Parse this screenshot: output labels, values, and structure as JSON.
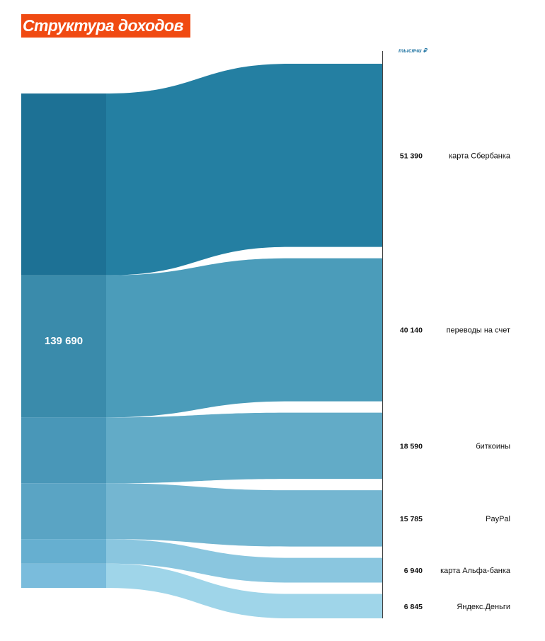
{
  "title": "Структура доходов",
  "colors": {
    "title_bg": "#f04a12",
    "title_text": "#ffffff",
    "unit_text": "#2a7aa6",
    "axis": "#444444",
    "label_text": "#111111"
  },
  "chart_data": {
    "type": "sankey",
    "title": "Структура доходов",
    "unit": "тысячи ₽",
    "total": 139690,
    "total_label": "139 690",
    "nodes": [
      {
        "label": "карта Сбербанка",
        "value": 51390,
        "value_label": "51 390",
        "color": "#247fa2",
        "source_color": "#1d7195"
      },
      {
        "label": "переводы на счет",
        "value": 40140,
        "value_label": "40 140",
        "color": "#4b9cba",
        "source_color": "#3a8bab"
      },
      {
        "label": "биткоины",
        "value": 18590,
        "value_label": "18 590",
        "color": "#62abc7",
        "source_color": "#4997b8"
      },
      {
        "label": "PayPal",
        "value": 15785,
        "value_label": "15 785",
        "color": "#74b6d1",
        "source_color": "#5aa4c4"
      },
      {
        "label": "карта Альфа-банка",
        "value": 6940,
        "value_label": "6 940",
        "color": "#8ac6df",
        "source_color": "#66afd0"
      },
      {
        "label": "Яндекс.Деньги",
        "value": 6845,
        "value_label": "6 845",
        "color": "#9fd5e9",
        "source_color": "#7abcdc"
      }
    ]
  }
}
